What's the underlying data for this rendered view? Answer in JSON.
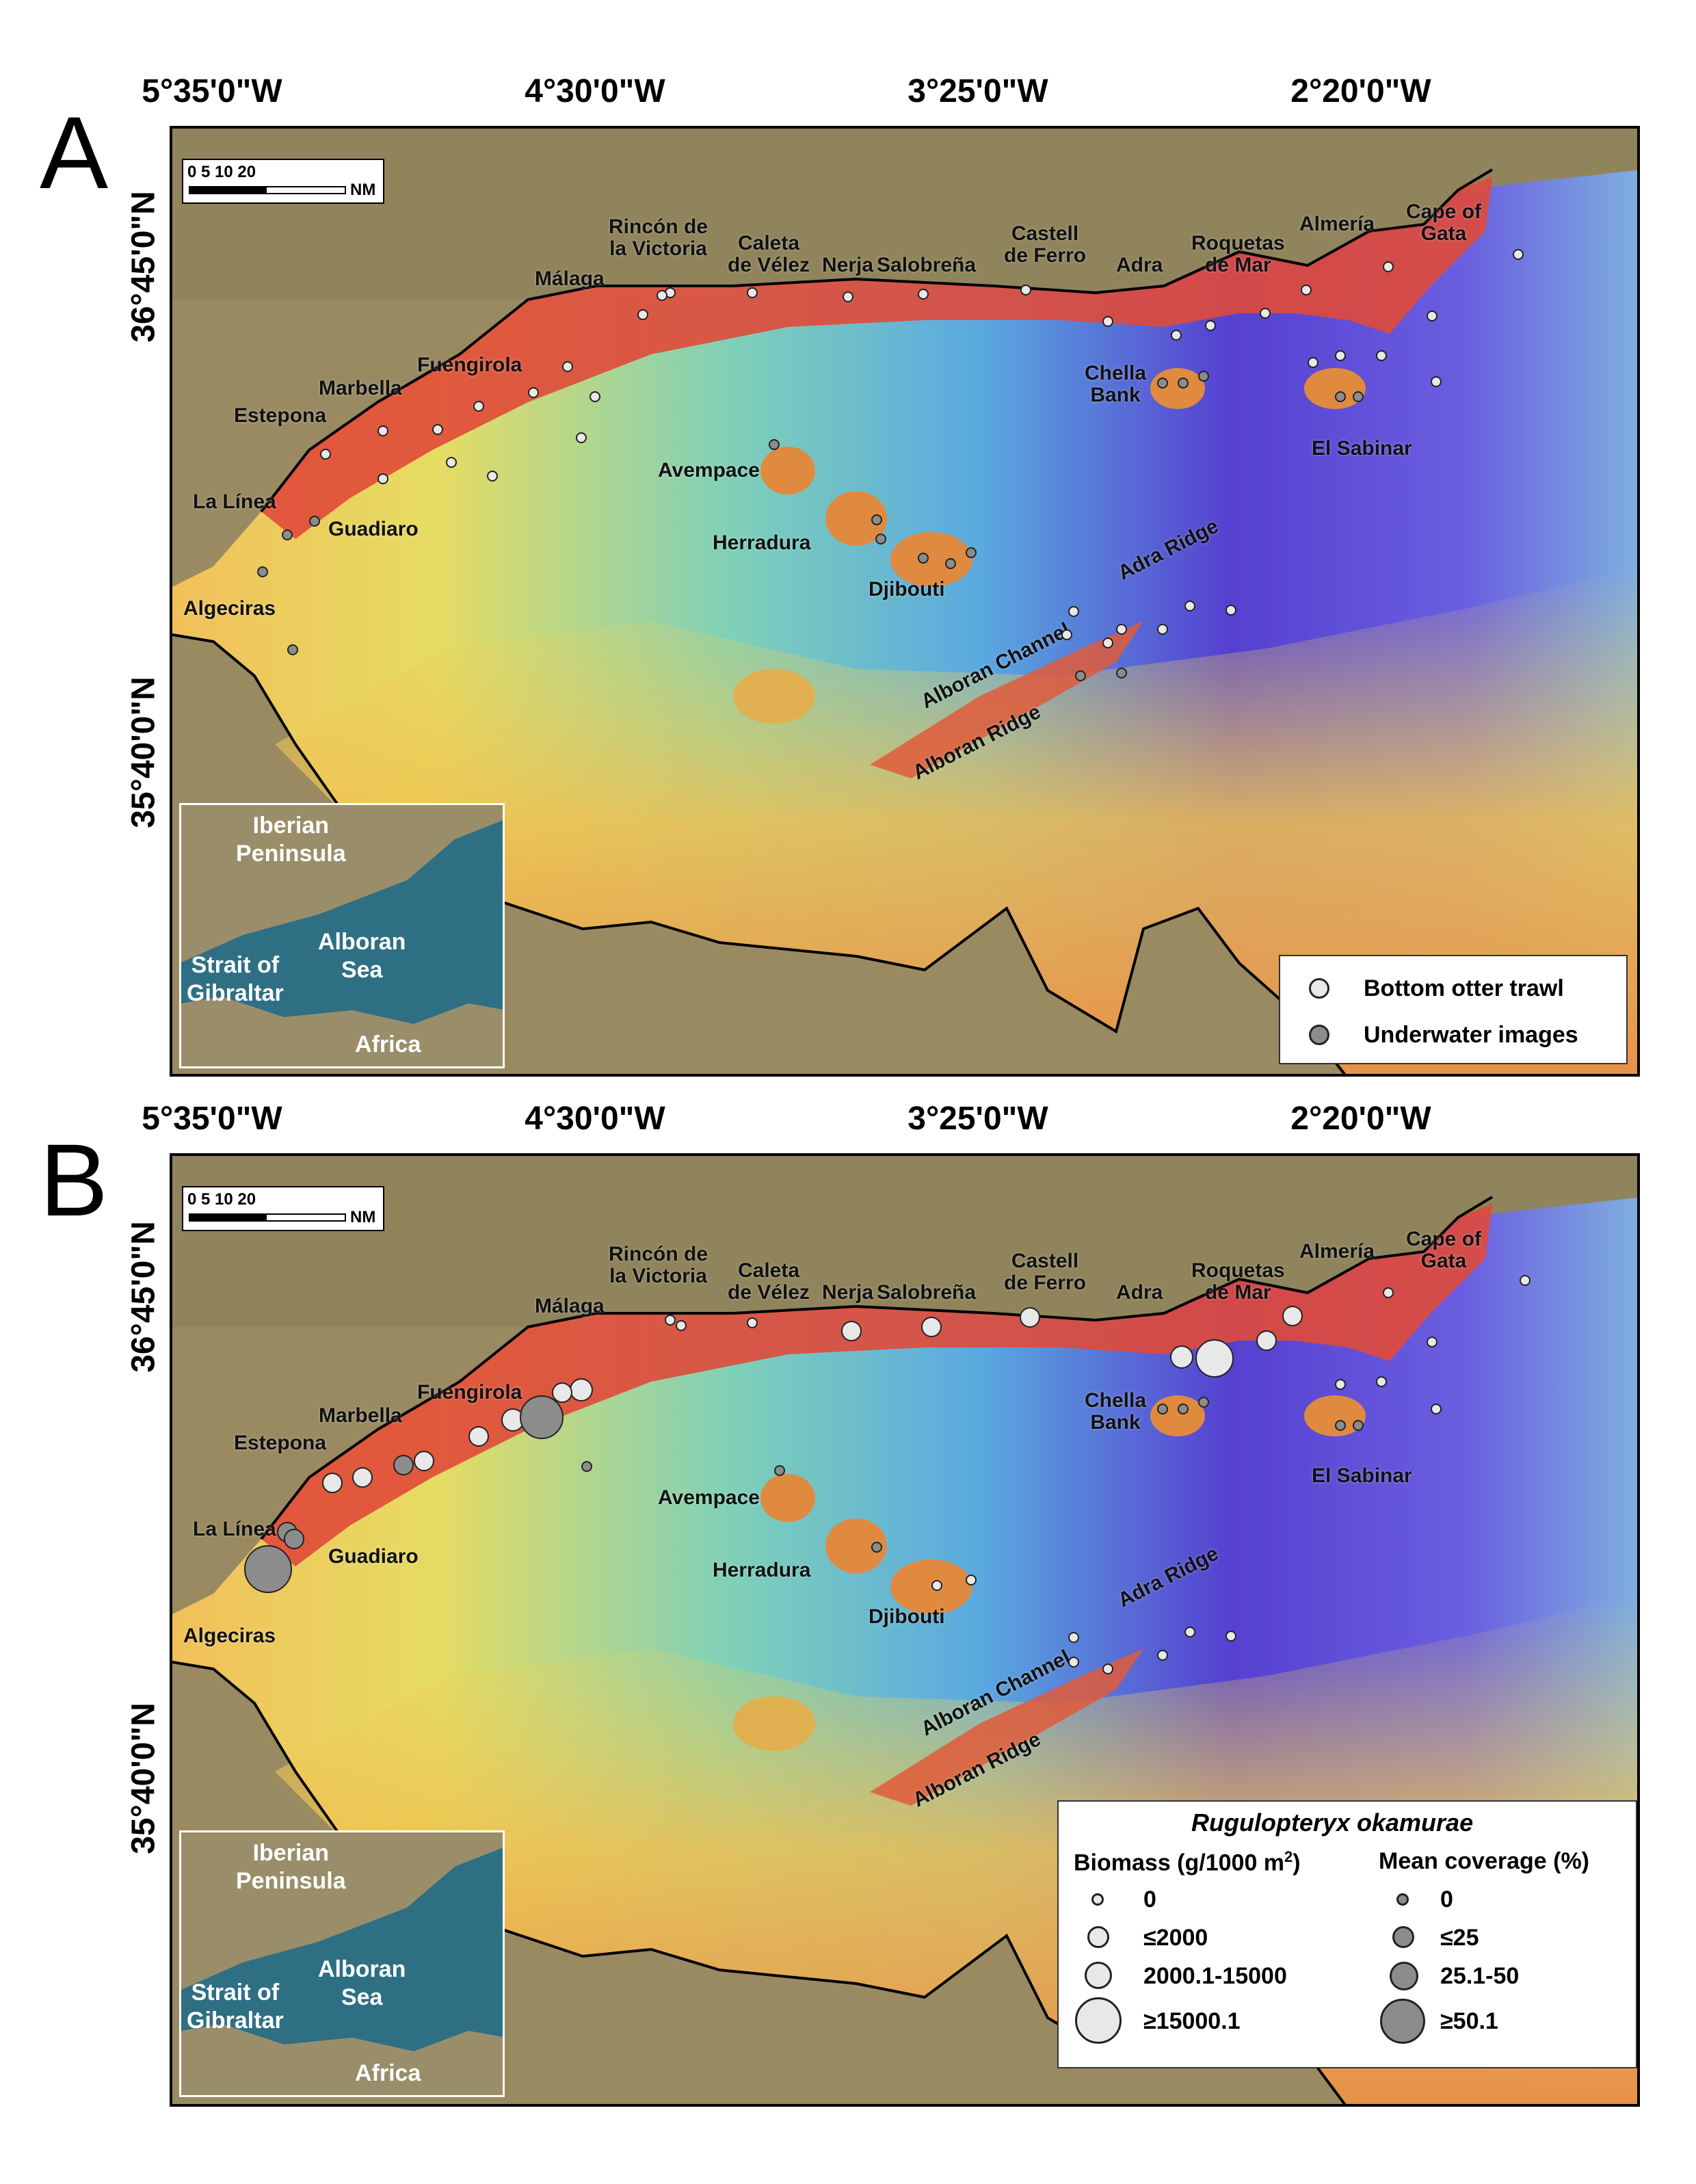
{
  "panels": [
    {
      "letter": "A",
      "lon_ticks": [
        "5°35'0\"W",
        "4°30'0\"W",
        "3°25'0\"W",
        "2°20'0\"W"
      ],
      "lat_ticks": [
        "36°45'0\"N",
        "35°40'0\"N"
      ]
    },
    {
      "letter": "B",
      "lon_ticks": [
        "5°35'0\"W",
        "4°30'0\"W",
        "3°25'0\"W",
        "2°20'0\"W"
      ],
      "lat_ticks": [
        "36°45'0\"N",
        "35°40'0\"N"
      ]
    }
  ],
  "scalebar": {
    "numbers": "0   5  10        20",
    "unit": "NM"
  },
  "places": {
    "malaga": "Málaga",
    "rincon": "Rincón de\nla Victoria",
    "caleta": "Caleta\nde Vélez",
    "nerja": "Nerja",
    "salobrena": "Salobreña",
    "castell": "Castell\nde Ferro",
    "adra": "Adra",
    "roquetas": "Roquetas\nde Mar",
    "almeria": "Almería",
    "cape_gata": "Cape of\nGata",
    "fuengirola": "Fuengirola",
    "marbella": "Marbella",
    "estepona": "Estepona",
    "la_linea": "La Línea",
    "guadiaro": "Guadiaro",
    "algeciras": "Algeciras",
    "avempace": "Avempace",
    "herradura": "Herradura",
    "djibouti": "Djibouti",
    "chella": "Chella\nBank",
    "el_sabinar": "El Sabinar",
    "adra_ridge": "Adra Ridge",
    "alboran_channel": "Alboran Channel",
    "alboran_ridge": "Alboran Ridge"
  },
  "inset": {
    "iberian": "Iberian\nPeninsula",
    "alboran_sea": "Alboran\nSea",
    "strait": "Strait of\nGibraltar",
    "africa": "Africa"
  },
  "legend_a": {
    "trawl": "Bottom otter trawl",
    "images": "Underwater images"
  },
  "legend_b": {
    "species": "Rugulopteryx okamurae",
    "biomass_title": "Biomass (g/1000 m",
    "biomass_sup": "2",
    "biomass_close": ")",
    "coverage_title": "Mean coverage (%)",
    "biomass_classes": [
      "0",
      "≤2000",
      "2000.1-15000",
      "≥15000.1"
    ],
    "coverage_classes": [
      "0",
      "≤25",
      "25.1-50",
      "≥50.1"
    ]
  },
  "colors": {
    "trawl_fill": "#e8e8e8",
    "images_fill": "#8c8c8c",
    "shelf": "#e04a3a",
    "deep": "#5a3fd0"
  }
}
